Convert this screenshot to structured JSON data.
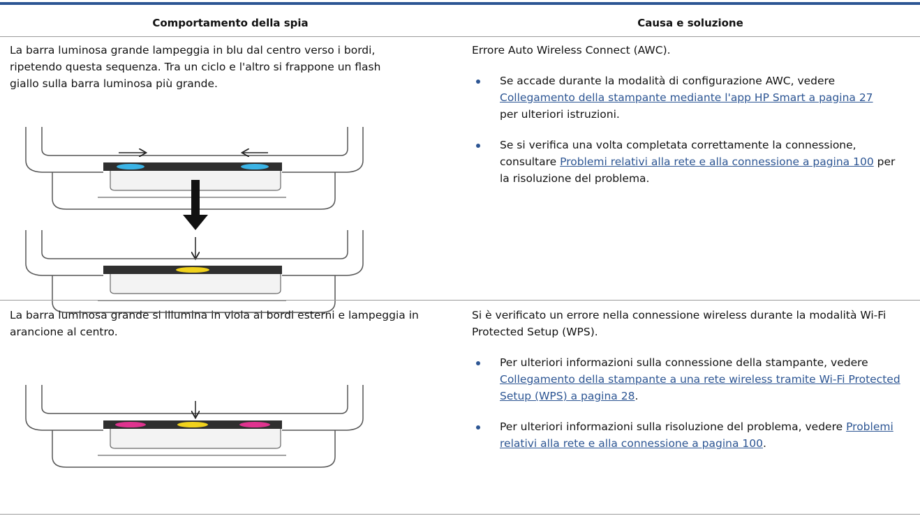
{
  "table": {
    "headers": [
      "Comportamento della spia",
      "Causa e soluzione"
    ],
    "rows": [
      {
        "behavior": "La barra luminosa grande lampeggia in blu dal centro verso i bordi, ripetendo questa sequenza. Tra un ciclo e l'altro si frappone un flash giallo sulla barra luminosa più grande.",
        "cause": "Errore Auto Wireless Connect (AWC).",
        "solutions": [
          {
            "before": "Se accade durante la modalità di configurazione AWC, vedere",
            "link": "Collegamento della stampante mediante l'app HP Smart a pagina 27",
            "after": "per ulteriori istruzioni."
          },
          {
            "before": "Se si verifica una volta completata correttamente la connessione, consultare",
            "link": "Problemi relativi alla rete e alla connessione a pagina 100",
            "after": "per la risoluzione del problema."
          }
        ]
      },
      {
        "behavior": "La barra luminosa grande si illumina in viola ai bordi esterni e lampeggia in arancione al centro.",
        "cause": "Si è verificato un errore nella connessione wireless durante la modalità Wi-Fi Protected Setup (WPS).",
        "solutions": [
          {
            "before": "Per ulteriori informazioni sulla connessione della stampante, vedere",
            "link": "Collegamento della stampante a una rete wireless tramite Wi-Fi Protected Setup (WPS) a pagina 28",
            "after": "."
          },
          {
            "before": "Per ulteriori informazioni sulla risoluzione del problema, vedere",
            "link": "Problemi relativi alla rete e alla connessione a pagina 100",
            "after": "."
          }
        ]
      }
    ]
  }
}
